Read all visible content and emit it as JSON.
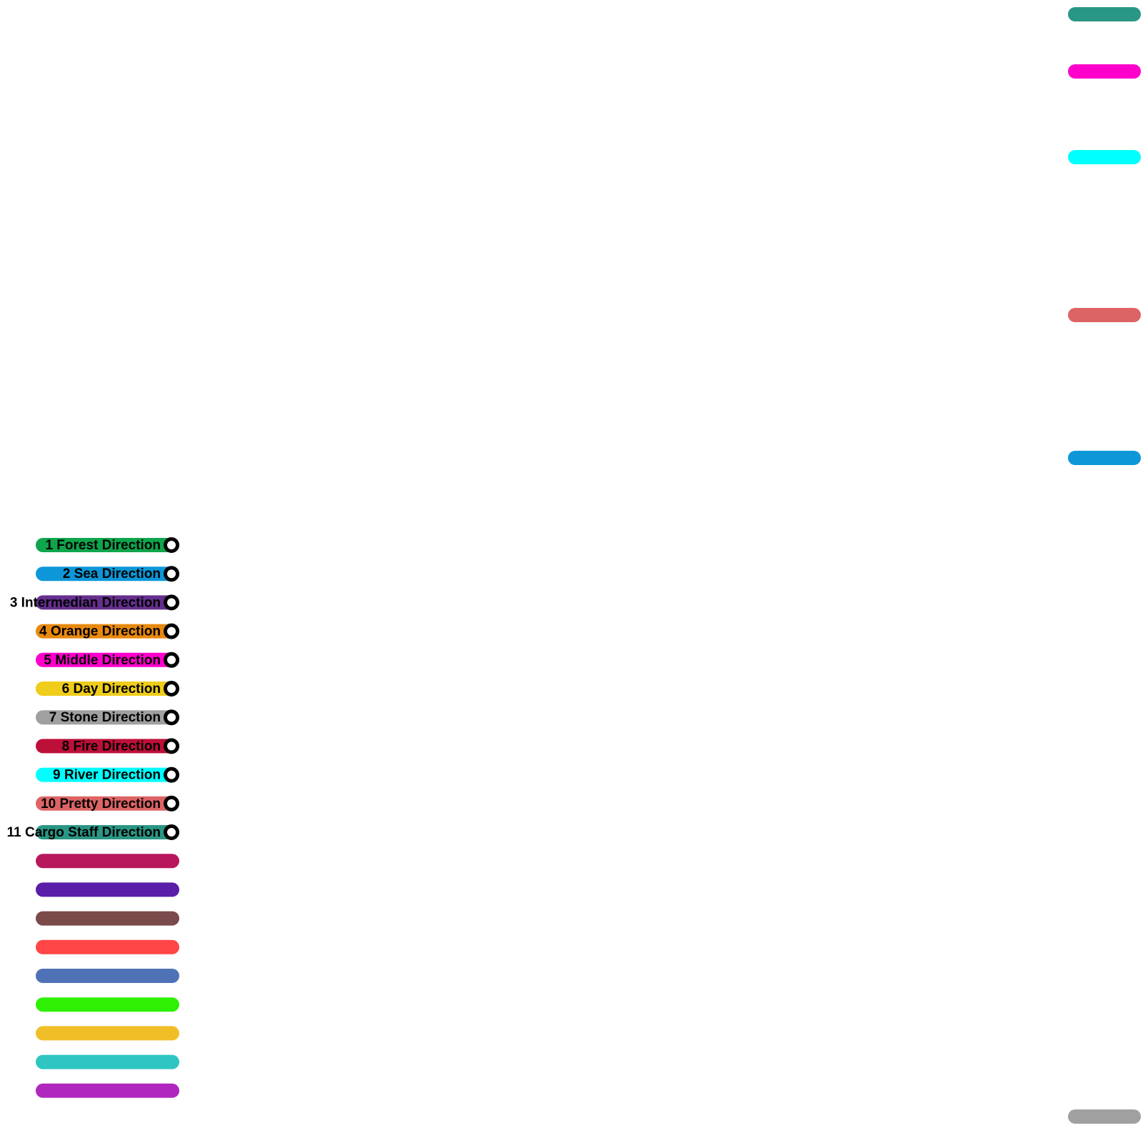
{
  "legend": {
    "lines": [
      {
        "label": "1 Forest Direction",
        "color": "#0fa54c"
      },
      {
        "label": "2 Sea Direction",
        "color": "#0d97d8"
      },
      {
        "label": "3 Intermedian Direction",
        "color": "#652f8e"
      },
      {
        "label": "4 Orange Direction",
        "color": "#e8890d"
      },
      {
        "label": "5 Middle Direction",
        "color": "#ff00cc"
      },
      {
        "label": "6 Day Direction",
        "color": "#efcd1a"
      },
      {
        "label": "7 Stone Direction",
        "color": "#a0a0a0"
      },
      {
        "label": "8 Fire Direction",
        "color": "#bd1038"
      },
      {
        "label": "9 River Direction",
        "color": "#00ffff"
      },
      {
        "label": "10 Pretty Direction",
        "color": "#dd6465"
      },
      {
        "label": "11 Cargo Staff Direction",
        "color": "#2a9685"
      }
    ],
    "extra_colors": [
      "#b8175c",
      "#5a1ea8",
      "#7b4a4a",
      "#ff4545",
      "#4f72b6",
      "#2ef003",
      "#f0bf28",
      "#2fc6c2",
      "#b027be"
    ]
  },
  "right_edge_segments": [
    {
      "color": "#2a9685"
    },
    {
      "color": "#ff00cc"
    },
    {
      "color": "#00ffff"
    },
    {
      "color": "#dd6465"
    },
    {
      "color": "#0d97d8"
    },
    {
      "color": "#a0a0a0"
    }
  ]
}
